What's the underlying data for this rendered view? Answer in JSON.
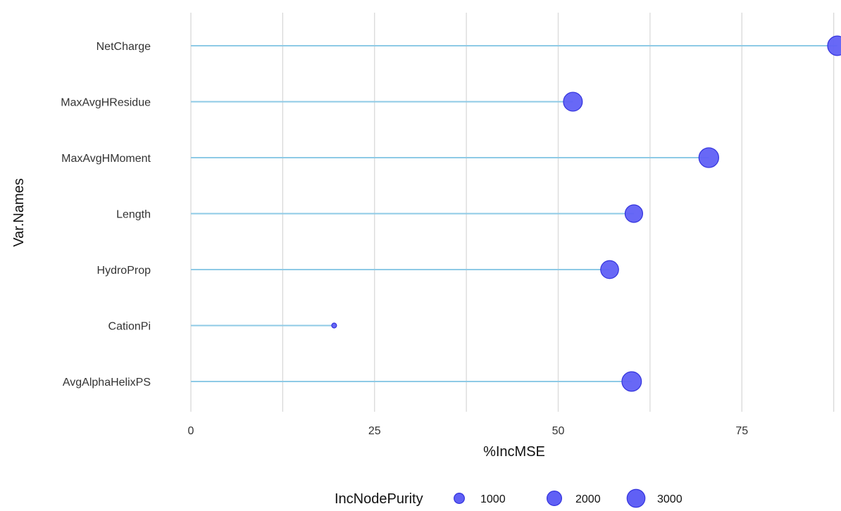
{
  "chart_data": {
    "type": "scatter",
    "subtype": "lollipop",
    "xlabel": "%IncMSE",
    "ylabel": "Var.Names",
    "xlim": [
      0,
      88
    ],
    "x_ticks": [
      0,
      25,
      50,
      75
    ],
    "x_tick_labels": [
      "0",
      "25",
      "50",
      "75"
    ],
    "grid": "vertical major and minor",
    "categories": [
      "NetCharge",
      "MaxAvgHResidue",
      "MaxAvgHMoment",
      "Length",
      "HydroProp",
      "CationPi",
      "AvgAlphaHelixPS"
    ],
    "values": [
      88,
      52,
      70.5,
      60.3,
      57,
      19.5,
      60
    ],
    "size_values": [
      3200,
      3000,
      3300,
      2600,
      2700,
      200,
      3200
    ],
    "size_variable": "IncNodePurity",
    "colors": {
      "point_fill": "#6060f5",
      "point_stroke": "#3333dd",
      "segment": "#8ecae6",
      "grid": "#d9d9d9"
    },
    "legend": {
      "title": "IncNodePurity",
      "placement": "bottom",
      "entries": [
        {
          "label": "1000",
          "value": 1000
        },
        {
          "label": "2000",
          "value": 2000
        },
        {
          "label": "3000",
          "value": 3000
        }
      ]
    }
  }
}
